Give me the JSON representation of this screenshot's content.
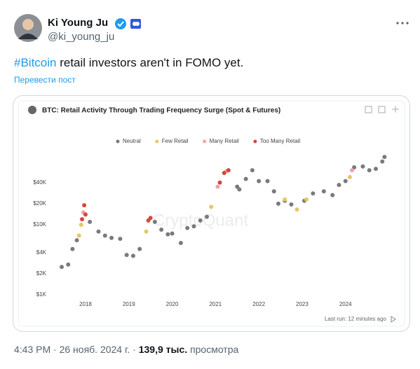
{
  "header": {
    "name": "Ki Young Ju",
    "handle": "@ki_young_ju"
  },
  "tweet": {
    "hashtag": "#Bitcoin",
    "text": " retail investors aren't in FOMO yet.",
    "translate": "Перевести пост"
  },
  "chart_data": {
    "type": "scatter",
    "title": "BTC: Retail Activity Through Trading Frequency Surge (Spot & Futures)",
    "watermark": "CryptoQuant",
    "footnote": "Last run: 12 minutes ago",
    "ylog": true,
    "xlim": [
      2017.24,
      2025.04
    ],
    "xticks": [
      2018,
      2019,
      2020,
      2021,
      2022,
      2023,
      2024
    ],
    "ylim": [
      1000,
      100000
    ],
    "yticks": [
      {
        "value": 1000,
        "label": "$1K"
      },
      {
        "value": 2000,
        "label": "$2K"
      },
      {
        "value": 4000,
        "label": "$4K"
      },
      {
        "value": 10000,
        "label": "$10K"
      },
      {
        "value": 20000,
        "label": "$20K"
      },
      {
        "value": 40000,
        "label": "$40K"
      }
    ],
    "series": [
      {
        "name": "Neutral",
        "color": "#7a7a7a",
        "x": [
          2017.45,
          2017.6,
          2017.7,
          2017.8,
          2018.1,
          2018.3,
          2018.45,
          2018.6,
          2018.8,
          2018.95,
          2019.1,
          2019.25,
          2019.6,
          2019.75,
          2019.9,
          2020.0,
          2020.2,
          2020.35,
          2020.5,
          2020.65,
          2020.8,
          2021.5,
          2021.55,
          2021.7,
          2021.85,
          2022.0,
          2022.2,
          2022.35,
          2022.45,
          2022.6,
          2022.75,
          2023.05,
          2023.25,
          2023.5,
          2023.7,
          2023.85,
          2024.0,
          2024.2,
          2024.4,
          2024.55,
          2024.7,
          2024.85,
          2024.9
        ],
        "values": [
          2500,
          2700,
          4500,
          6000,
          11000,
          8000,
          7000,
          6500,
          6300,
          3700,
          3600,
          4500,
          11000,
          8500,
          7300,
          7500,
          5500,
          9000,
          9500,
          11500,
          13000,
          35000,
          32000,
          45000,
          60000,
          42000,
          42000,
          30000,
          20000,
          22000,
          19500,
          22000,
          28000,
          30000,
          26500,
          37000,
          42000,
          66000,
          68000,
          60000,
          63000,
          80000,
          93000
        ]
      },
      {
        "name": "Few Retail",
        "color": "#e6c766",
        "x": [
          2017.85,
          2017.9,
          2019.4,
          2020.9,
          2022.6,
          2022.88,
          2023.1,
          2024.1
        ],
        "values": [
          7000,
          10000,
          8000,
          18000,
          23000,
          16500,
          23000,
          48000
        ]
      },
      {
        "name": "Many Retail",
        "color": "#f0a3a3",
        "x": [
          2017.95,
          2021.05,
          2021.25,
          2024.15
        ],
        "values": [
          15000,
          35000,
          58000,
          60000
        ]
      },
      {
        "name": "Too Many Retail",
        "color": "#d7463a",
        "x": [
          2017.92,
          2017.97,
          2018.0,
          2019.45,
          2019.5,
          2021.1,
          2021.2,
          2021.3
        ],
        "values": [
          12000,
          19000,
          14000,
          11500,
          12500,
          40000,
          55000,
          60000
        ]
      }
    ]
  },
  "footer": {
    "time": "4:43 PM",
    "separator": "·",
    "date": "26 нояб. 2024 г.",
    "views": "139,9 тыс.",
    "views_label": "просмотра"
  }
}
